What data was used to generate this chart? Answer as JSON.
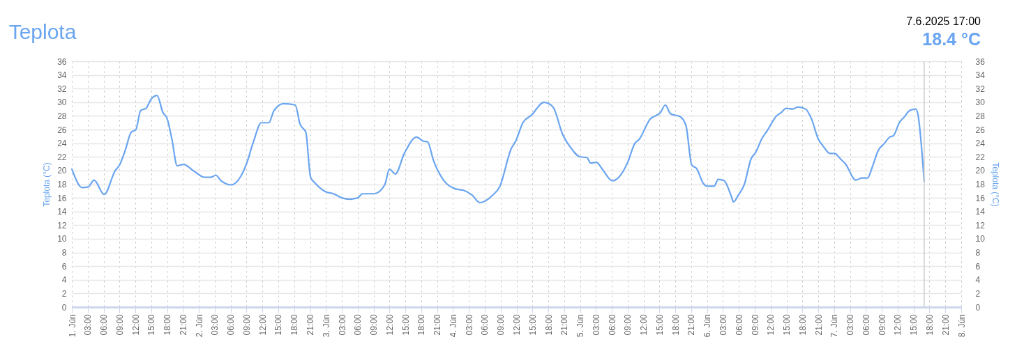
{
  "chart_data": {
    "type": "line",
    "title": "Teplota",
    "ylabel": "Teplota (°C)",
    "y2label": "Teplota (°C)",
    "annotations": [
      "7.6.2025 17:00",
      "18.4 °C"
    ],
    "x": [
      "2025-06-01T00:00",
      "2025-06-01T02:00",
      "2025-06-01T03:06",
      "2025-06-01T04:12",
      "2025-06-01T06:06",
      "2025-06-01T08:12",
      "2025-06-01T09:00",
      "2025-06-01T10:06",
      "2025-06-01T11:12",
      "2025-06-01T12:06",
      "2025-06-01T13:00",
      "2025-06-01T14:00",
      "2025-06-01T15:00",
      "2025-06-01T16:06",
      "2025-06-01T17:12",
      "2025-06-01T18:00",
      "2025-06-01T18:54",
      "2025-06-01T19:54",
      "2025-06-01T21:06",
      "2025-06-01T22:54",
      "2025-06-02T01:06",
      "2025-06-02T02:12",
      "2025-06-02T03:12",
      "2025-06-02T04:12",
      "2025-06-02T06:06",
      "2025-06-02T09:00",
      "2025-06-02T10:18",
      "2025-06-02T11:48",
      "2025-06-02T13:12",
      "2025-06-02T14:12",
      "2025-06-02T16:00",
      "2025-06-02T18:12",
      "2025-06-02T19:06",
      "2025-06-02T20:12",
      "2025-06-02T21:06",
      "2025-06-02T21:54",
      "2025-06-02T23:54",
      "2025-06-03T01:24",
      "2025-06-03T03:00",
      "2025-06-03T04:30",
      "2025-06-03T06:00",
      "2025-06-03T06:54",
      "2025-06-03T09:06",
      "2025-06-03T11:06",
      "2025-06-03T12:00",
      "2025-06-03T13:06",
      "2025-06-03T14:48",
      "2025-06-03T17:06",
      "2025-06-03T18:24",
      "2025-06-03T19:12",
      "2025-06-03T20:18",
      "2025-06-03T22:18",
      "2025-06-04T00:30",
      "2025-06-04T02:00",
      "2025-06-04T03:36",
      "2025-06-04T05:06",
      "2025-06-04T07:30",
      "2025-06-04T08:48",
      "2025-06-04T11:00",
      "2025-06-04T11:54",
      "2025-06-04T13:12",
      "2025-06-04T14:48",
      "2025-06-04T17:12",
      "2025-06-04T18:54",
      "2025-06-04T20:42",
      "2025-06-04T22:00",
      "2025-06-05T00:00",
      "2025-06-05T01:18",
      "2025-06-05T02:00",
      "2025-06-05T03:06",
      "2025-06-05T04:12",
      "2025-06-05T06:06",
      "2025-06-05T07:18",
      "2025-06-05T09:00",
      "2025-06-05T10:18",
      "2025-06-05T11:12",
      "2025-06-05T13:12",
      "2025-06-05T15:12",
      "2025-06-05T16:06",
      "2025-06-05T17:06",
      "2025-06-05T18:54",
      "2025-06-05T20:00",
      "2025-06-05T21:06",
      "2025-06-05T22:00",
      "2025-06-05T23:18",
      "2025-06-06T00:00",
      "2025-06-06T01:18",
      "2025-06-06T02:06",
      "2025-06-06T03:12",
      "2025-06-06T04:30",
      "2025-06-06T05:00",
      "2025-06-06T05:54",
      "2025-06-06T07:00",
      "2025-06-06T08:18",
      "2025-06-06T09:12",
      "2025-06-06T10:18",
      "2025-06-06T11:24",
      "2025-06-06T13:06",
      "2025-06-06T14:00",
      "2025-06-06T14:54",
      "2025-06-06T16:12",
      "2025-06-06T17:06",
      "2025-06-06T18:36",
      "2025-06-06T19:42",
      "2025-06-06T21:00",
      "2025-06-06T21:54",
      "2025-06-06T23:12",
      "2025-06-07T00:06",
      "2025-06-07T01:12",
      "2025-06-07T02:06",
      "2025-06-07T04:06",
      "2025-06-07T05:12",
      "2025-06-07T06:18",
      "2025-06-07T07:12",
      "2025-06-07T08:18",
      "2025-06-07T09:24",
      "2025-06-07T10:30",
      "2025-06-07T11:12",
      "2025-06-07T12:18",
      "2025-06-07T13:12",
      "2025-06-07T14:18",
      "2025-06-07T15:24",
      "2025-06-07T15:48",
      "2025-06-07T17:00"
    ],
    "series": [
      {
        "color": "#6aa5f0",
        "values": [
          20.2,
          17.5,
          17.6,
          18.6,
          16.5,
          20.0,
          20.8,
          23.0,
          25.6,
          26.0,
          28.8,
          29.1,
          30.5,
          31.0,
          28.5,
          27.6,
          24.6,
          20.7,
          20.9,
          20.0,
          19.0,
          19.0,
          19.3,
          18.5,
          17.9,
          21.0,
          24.2,
          27.0,
          27.0,
          28.8,
          29.8,
          29.6,
          26.8,
          25.6,
          19.0,
          18.2,
          16.9,
          16.6,
          16.0,
          15.8,
          16.0,
          16.6,
          16.6,
          17.9,
          20.2,
          19.5,
          22.5,
          24.9,
          24.3,
          24.2,
          21.5,
          18.5,
          17.3,
          17.1,
          16.4,
          15.3,
          16.4,
          17.6,
          23.2,
          24.4,
          27.0,
          28.1,
          30.0,
          29.3,
          25.3,
          23.6,
          22.0,
          21.9,
          21.1,
          21.2,
          20.2,
          18.5,
          19.0,
          21.2,
          23.9,
          24.6,
          27.5,
          28.5,
          29.6,
          28.3,
          27.9,
          26.6,
          20.8,
          20.3,
          18.1,
          17.7,
          17.7,
          18.7,
          18.5,
          16.4,
          15.4,
          16.4,
          17.9,
          21.7,
          22.7,
          24.6,
          25.9,
          28.0,
          28.5,
          29.1,
          29.0,
          29.3,
          29.0,
          27.6,
          24.6,
          23.6,
          22.5,
          22.5,
          21.7,
          21.0,
          18.6,
          18.9,
          18.9,
          20.5,
          22.9,
          23.9,
          24.9,
          25.1,
          27.0,
          27.8,
          28.8,
          29.0,
          28.3,
          18.4
        ]
      }
    ],
    "xlim": [
      "2025-06-01T00:00",
      "2025-06-08T00:00"
    ],
    "xticks": [
      {
        "value": "2025-06-01T00:00",
        "label": "1. Jún"
      },
      {
        "value": "2025-06-01T03:00",
        "label": "03:00"
      },
      {
        "value": "2025-06-01T06:00",
        "label": "06:00"
      },
      {
        "value": "2025-06-01T09:00",
        "label": "09:00"
      },
      {
        "value": "2025-06-01T12:00",
        "label": "12:00"
      },
      {
        "value": "2025-06-01T15:00",
        "label": "15:00"
      },
      {
        "value": "2025-06-01T18:00",
        "label": "18:00"
      },
      {
        "value": "2025-06-01T21:00",
        "label": "21:00"
      },
      {
        "value": "2025-06-02T00:00",
        "label": "2. Jún"
      },
      {
        "value": "2025-06-02T03:00",
        "label": "03:00"
      },
      {
        "value": "2025-06-02T06:00",
        "label": "06:00"
      },
      {
        "value": "2025-06-02T09:00",
        "label": "09:00"
      },
      {
        "value": "2025-06-02T12:00",
        "label": "12:00"
      },
      {
        "value": "2025-06-02T15:00",
        "label": "15:00"
      },
      {
        "value": "2025-06-02T18:00",
        "label": "18:00"
      },
      {
        "value": "2025-06-02T21:00",
        "label": "21:00"
      },
      {
        "value": "2025-06-03T00:00",
        "label": "3. Jún"
      },
      {
        "value": "2025-06-03T03:00",
        "label": "03:00"
      },
      {
        "value": "2025-06-03T06:00",
        "label": "06:00"
      },
      {
        "value": "2025-06-03T09:00",
        "label": "09:00"
      },
      {
        "value": "2025-06-03T12:00",
        "label": "12:00"
      },
      {
        "value": "2025-06-03T15:00",
        "label": "15:00"
      },
      {
        "value": "2025-06-03T18:00",
        "label": "18:00"
      },
      {
        "value": "2025-06-03T21:00",
        "label": "21:00"
      },
      {
        "value": "2025-06-04T00:00",
        "label": "4. Jún"
      },
      {
        "value": "2025-06-04T03:00",
        "label": "03:00"
      },
      {
        "value": "2025-06-04T06:00",
        "label": "06:00"
      },
      {
        "value": "2025-06-04T09:00",
        "label": "09:00"
      },
      {
        "value": "2025-06-04T12:00",
        "label": "12:00"
      },
      {
        "value": "2025-06-04T15:00",
        "label": "15:00"
      },
      {
        "value": "2025-06-04T18:00",
        "label": "18:00"
      },
      {
        "value": "2025-06-04T21:00",
        "label": "21:00"
      },
      {
        "value": "2025-06-05T00:00",
        "label": "5. Jún"
      },
      {
        "value": "2025-06-05T03:00",
        "label": "03:00"
      },
      {
        "value": "2025-06-05T06:00",
        "label": "06:00"
      },
      {
        "value": "2025-06-05T09:00",
        "label": "09:00"
      },
      {
        "value": "2025-06-05T12:00",
        "label": "12:00"
      },
      {
        "value": "2025-06-05T15:00",
        "label": "15:00"
      },
      {
        "value": "2025-06-05T18:00",
        "label": "18:00"
      },
      {
        "value": "2025-06-05T21:00",
        "label": "21:00"
      },
      {
        "value": "2025-06-06T00:00",
        "label": "6. Jún"
      },
      {
        "value": "2025-06-06T03:00",
        "label": "03:00"
      },
      {
        "value": "2025-06-06T06:00",
        "label": "06:00"
      },
      {
        "value": "2025-06-06T09:00",
        "label": "09:00"
      },
      {
        "value": "2025-06-06T12:00",
        "label": "12:00"
      },
      {
        "value": "2025-06-06T15:00",
        "label": "15:00"
      },
      {
        "value": "2025-06-06T18:00",
        "label": "18:00"
      },
      {
        "value": "2025-06-06T21:00",
        "label": "21:00"
      },
      {
        "value": "2025-06-07T00:00",
        "label": "7. Jún"
      },
      {
        "value": "2025-06-07T03:00",
        "label": "03:00"
      },
      {
        "value": "2025-06-07T06:00",
        "label": "06:00"
      },
      {
        "value": "2025-06-07T09:00",
        "label": "09:00"
      },
      {
        "value": "2025-06-07T12:00",
        "label": "12:00"
      },
      {
        "value": "2025-06-07T15:00",
        "label": "15:00"
      },
      {
        "value": "2025-06-07T18:00",
        "label": "18:00"
      },
      {
        "value": "2025-06-07T21:00",
        "label": "21:00"
      },
      {
        "value": "2025-06-08T00:00",
        "label": "8. Jún"
      }
    ],
    "ylim": [
      0,
      36
    ],
    "yticks": [
      0,
      2,
      4,
      6,
      8,
      10,
      12,
      14,
      16,
      18,
      20,
      22,
      24,
      26,
      28,
      30,
      32,
      34,
      36
    ],
    "y2lim": [
      0,
      36
    ],
    "y2ticks": [
      0,
      2,
      4,
      6,
      8,
      10,
      12,
      14,
      16,
      18,
      20,
      22,
      24,
      26,
      28,
      30,
      32,
      34,
      36
    ],
    "ref_lines": [
      {
        "axis": "x",
        "value": "2025-06-07T17:00",
        "color": "#cccccc"
      }
    ],
    "grid": true,
    "marker": "none",
    "line_style": "solid"
  }
}
